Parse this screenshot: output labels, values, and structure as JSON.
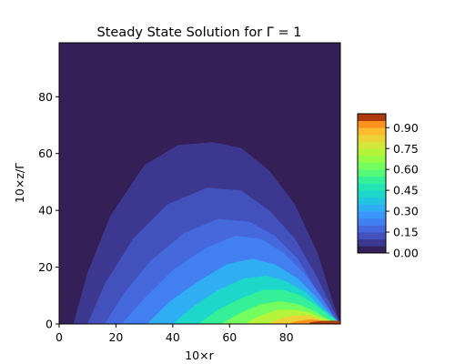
{
  "chart_data": {
    "type": "heatmap",
    "subtype": "filled-contour",
    "title": "Steady State Solution for Γ = 1",
    "xlabel": "10×r",
    "ylabel": "10×z/Γ",
    "xlim": [
      0,
      99
    ],
    "ylim": [
      0,
      99
    ],
    "x_ticks": [
      "0",
      "20",
      "40",
      "60",
      "80"
    ],
    "y_ticks": [
      "0",
      "20",
      "40",
      "60",
      "80"
    ],
    "x_tick_values": [
      0,
      20,
      40,
      60,
      80
    ],
    "y_tick_values": [
      0,
      20,
      40,
      60,
      80
    ],
    "colorbar": {
      "position": "right",
      "range": [
        0,
        1.0
      ],
      "level_step": 0.05,
      "tick_values": [
        0.0,
        0.15,
        0.3,
        0.45,
        0.6,
        0.75,
        0.9
      ],
      "tick_labels": [
        "0.00",
        "0.15",
        "0.30",
        "0.45",
        "0.60",
        "0.75",
        "0.90"
      ],
      "colormap": "turbo"
    },
    "contour_boundaries": [
      {
        "level": 0.05,
        "points": [
          [
            5,
            0
          ],
          [
            10,
            18
          ],
          [
            18,
            38
          ],
          [
            30,
            56
          ],
          [
            42,
            63
          ],
          [
            54,
            64
          ],
          [
            64,
            62
          ],
          [
            74,
            54
          ],
          [
            83,
            42
          ],
          [
            91,
            25
          ],
          [
            96,
            9
          ],
          [
            99,
            0
          ]
        ]
      },
      {
        "level": 0.1,
        "points": [
          [
            10,
            0
          ],
          [
            16,
            14
          ],
          [
            26,
            30
          ],
          [
            38,
            42
          ],
          [
            52,
            48
          ],
          [
            64,
            47
          ],
          [
            74,
            40
          ],
          [
            83,
            30
          ],
          [
            90,
            18
          ],
          [
            96,
            6
          ],
          [
            99,
            0
          ]
        ]
      },
      {
        "level": 0.15,
        "points": [
          [
            16,
            0
          ],
          [
            23,
            11
          ],
          [
            32,
            22
          ],
          [
            44,
            32
          ],
          [
            56,
            37
          ],
          [
            67,
            36
          ],
          [
            76,
            31
          ],
          [
            84,
            23
          ],
          [
            90,
            13
          ],
          [
            96,
            4
          ],
          [
            99,
            0
          ]
        ]
      },
      {
        "level": 0.2,
        "points": [
          [
            22,
            0
          ],
          [
            30,
            9
          ],
          [
            40,
            19
          ],
          [
            52,
            27
          ],
          [
            62,
            31
          ],
          [
            71,
            30
          ],
          [
            79,
            25
          ],
          [
            86,
            18
          ],
          [
            92,
            10
          ],
          [
            97,
            2
          ],
          [
            99,
            0
          ]
        ]
      },
      {
        "level": 0.3,
        "points": [
          [
            31,
            0
          ],
          [
            39,
            8
          ],
          [
            49,
            15
          ],
          [
            59,
            21
          ],
          [
            68,
            23
          ],
          [
            76,
            21
          ],
          [
            84,
            16
          ],
          [
            90,
            10
          ],
          [
            95,
            4
          ],
          [
            99,
            0
          ]
        ]
      },
      {
        "level": 0.4,
        "points": [
          [
            40,
            0
          ],
          [
            47,
            6
          ],
          [
            56,
            12
          ],
          [
            65,
            16
          ],
          [
            73,
            17
          ],
          [
            80,
            15
          ],
          [
            87,
            11
          ],
          [
            92,
            6
          ],
          [
            97,
            2
          ],
          [
            99,
            0
          ]
        ]
      },
      {
        "level": 0.5,
        "points": [
          [
            49,
            0
          ],
          [
            56,
            5
          ],
          [
            64,
            9
          ],
          [
            72,
            12
          ],
          [
            79,
            12
          ],
          [
            85,
            10
          ],
          [
            90,
            7
          ],
          [
            95,
            3
          ],
          [
            99,
            0
          ]
        ]
      },
      {
        "level": 0.6,
        "points": [
          [
            57,
            0
          ],
          [
            64,
            4
          ],
          [
            71,
            7
          ],
          [
            78,
            8
          ],
          [
            84,
            7
          ],
          [
            89,
            5
          ],
          [
            94,
            2
          ],
          [
            99,
            0
          ]
        ]
      },
      {
        "level": 0.7,
        "points": [
          [
            65,
            0
          ],
          [
            71,
            3
          ],
          [
            77,
            5
          ],
          [
            83,
            5
          ],
          [
            88,
            4
          ],
          [
            93,
            2
          ],
          [
            99,
            0
          ]
        ]
      },
      {
        "level": 0.8,
        "points": [
          [
            73,
            0
          ],
          [
            78,
            2
          ],
          [
            83,
            3
          ],
          [
            88,
            3
          ],
          [
            93,
            1
          ],
          [
            99,
            0
          ]
        ]
      },
      {
        "level": 0.9,
        "points": [
          [
            80,
            0
          ],
          [
            84,
            1
          ],
          [
            88,
            1.6
          ],
          [
            92,
            1.3
          ],
          [
            96,
            0.6
          ],
          [
            99,
            0
          ]
        ]
      }
    ]
  }
}
